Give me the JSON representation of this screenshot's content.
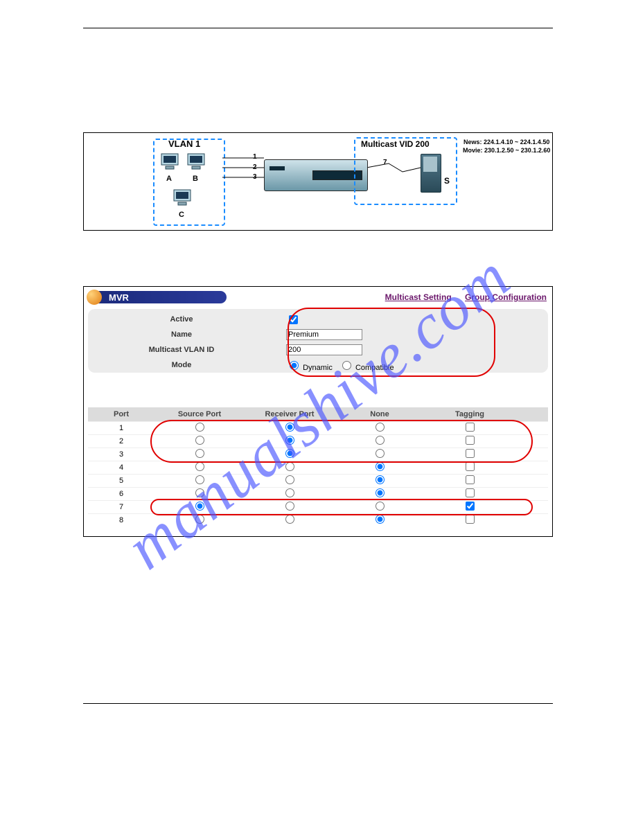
{
  "diagram": {
    "vlan_label": "VLAN 1",
    "mvid_label": "Multicast VID 200",
    "news_text": "News: 224.1.4.10 ~ 224.1.4.50",
    "movie_text": "Movie: 230.1.2.50 ~ 230.1.2.60",
    "host_a": "A",
    "host_b": "B",
    "host_c": "C",
    "server_label": "S",
    "port1": "1",
    "port2": "2",
    "port3": "3",
    "port7": "7"
  },
  "mvr": {
    "title": "MVR",
    "link_multicast": "Multicast Setting",
    "link_group": "Group Configuration",
    "labels": {
      "active": "Active",
      "name": "Name",
      "vlanid": "Multicast VLAN ID",
      "mode": "Mode",
      "mode_dynamic": "Dynamic",
      "mode_compatible": "Compatible"
    },
    "values": {
      "name": "Premium",
      "vlanid": "200"
    },
    "columns": {
      "port": "Port",
      "source": "Source Port",
      "receiver": "Receiver Port",
      "none": "None",
      "tagging": "Tagging"
    },
    "rows": [
      {
        "port": "1",
        "sel": "receiver",
        "tag": false
      },
      {
        "port": "2",
        "sel": "receiver",
        "tag": false
      },
      {
        "port": "3",
        "sel": "receiver",
        "tag": false
      },
      {
        "port": "4",
        "sel": "none",
        "tag": false
      },
      {
        "port": "5",
        "sel": "none",
        "tag": false
      },
      {
        "port": "6",
        "sel": "none",
        "tag": false
      },
      {
        "port": "7",
        "sel": "source",
        "tag": true
      },
      {
        "port": "8",
        "sel": "none",
        "tag": false
      }
    ]
  },
  "watermark": "manualshive.com",
  "colors": {
    "dashed_box": "#1a8cff",
    "red_highlight": "#e00000",
    "titlebar_start": "#1a2a7a",
    "titlebar_end": "#2a3a9a",
    "link_color": "#6b176b",
    "band_bg": "#ececec",
    "watermark_color": "#4a55ff"
  }
}
